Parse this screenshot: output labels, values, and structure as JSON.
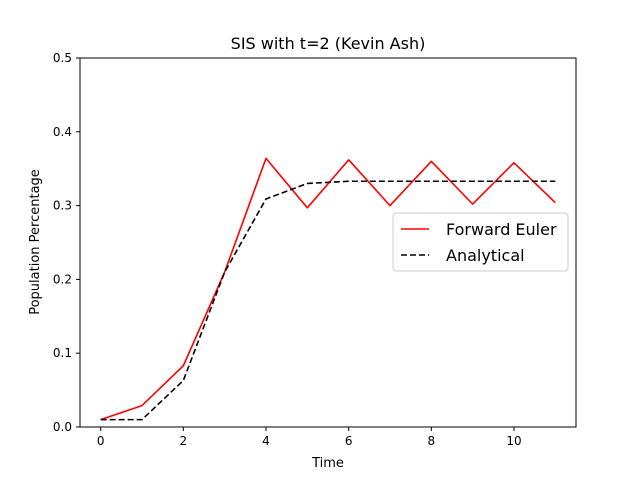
{
  "chart_data": {
    "type": "line",
    "title": "SIS with t=2 (Kevin Ash)",
    "xlabel": "Time",
    "ylabel": "Population Percentage",
    "xlim": [
      -0.5,
      11.5
    ],
    "ylim": [
      0,
      0.5
    ],
    "xticks": [
      0,
      2,
      4,
      6,
      8,
      10
    ],
    "yticks": [
      0.0,
      0.1,
      0.2,
      0.3,
      0.4,
      0.5
    ],
    "grid": false,
    "legend_position": "center-right",
    "series": [
      {
        "name": "Forward Euler",
        "color": "#ff0000",
        "style": "solid",
        "x": [
          0,
          1,
          2,
          3,
          4,
          5,
          6,
          7,
          8,
          9,
          10,
          11
        ],
        "values": [
          0.01,
          0.029,
          0.083,
          0.21,
          0.364,
          0.297,
          0.362,
          0.3,
          0.36,
          0.302,
          0.358,
          0.304
        ]
      },
      {
        "name": "Analytical",
        "color": "#000000",
        "style": "dashed",
        "x": [
          0,
          1,
          2,
          3,
          4,
          5,
          6,
          7,
          8,
          9,
          10,
          11
        ],
        "values": [
          0.01,
          0.01,
          0.063,
          0.21,
          0.309,
          0.33,
          0.333,
          0.333,
          0.333,
          0.333,
          0.333,
          0.333
        ]
      }
    ]
  }
}
